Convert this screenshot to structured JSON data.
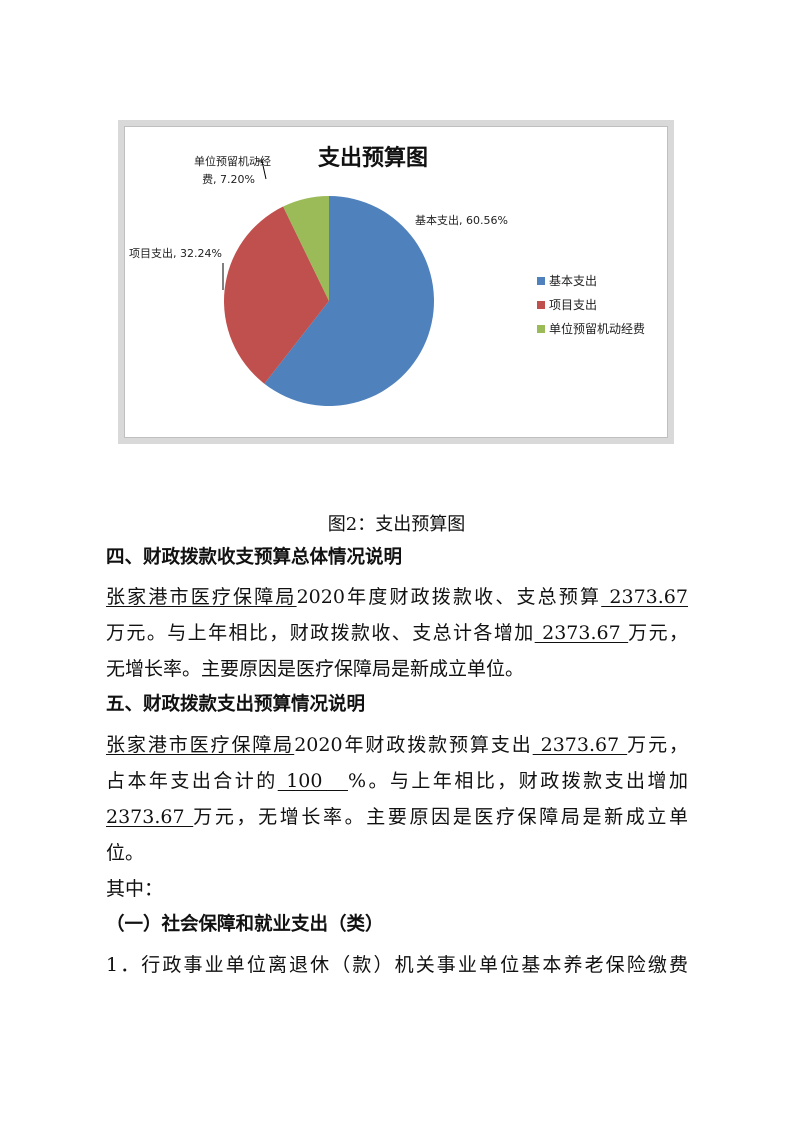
{
  "chart_data": {
    "type": "pie",
    "title": "支出预算图",
    "categories": [
      "基本支出",
      "项目支出",
      "单位预留机动经费"
    ],
    "values": [
      60.56,
      32.24,
      7.2
    ],
    "data_labels": [
      "基本支出, 60.56%",
      "项目支出, 32.24%",
      "单位预留机动经费, 7.20%"
    ],
    "data_label_lines": [
      [
        "基本支出, 60.56%"
      ],
      [
        "项目支出, 32.24%"
      ],
      [
        "单位预留机动经",
        "费, 7.20%"
      ]
    ],
    "colors": [
      "#4f81bd",
      "#c0504d",
      "#9bbb59"
    ],
    "legend": [
      "基本支出",
      "项目支出",
      "单位预留机动经费"
    ],
    "legend_position": "right",
    "start": "top, clockwise"
  },
  "caption": "图2：支出预算图",
  "section4": {
    "heading": "四、财政拨款收支预算总体情况说明",
    "unit": "张家港市医疗保障局",
    "t1": "2020年度财政拨款收、支总预算",
    "v1": " 2373.67",
    "t2": "万元。与上年相比，财政拨款收、支总计各增加",
    "v2": " 2373.67 ",
    "t3": "万元，",
    "t4": "无增长率。主要原因是医疗保障局是新成立单位。"
  },
  "section5": {
    "heading": "五、财政拨款支出预算情况说明",
    "unit": "张家港市医疗保障局",
    "t1": "2020年财政拨款预算支出",
    "v1": " 2373.67 ",
    "t2": "万元，",
    "t3": "占本年支出合计的",
    "v2": " 100   ",
    "t4": "%。与上年相比，财政拨款支出增加",
    "v3": "2373.67 ",
    "t5": "万元，无增长率。主要原因是医疗保障局是新成立单",
    "t6": "位。"
  },
  "among": "其中：",
  "sub1": "（一）社会保障和就业支出（类）",
  "item1": "1．行政事业单位离退休（款）机关事业单位基本养老保险缴费"
}
